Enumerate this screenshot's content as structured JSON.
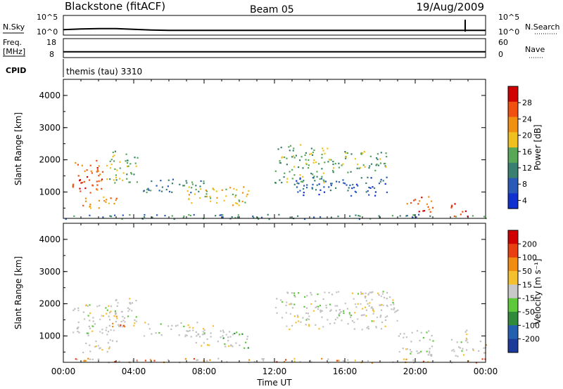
{
  "header": {
    "station": "Blackstone (fitACF)",
    "beam": "Beam 05",
    "date": "19/Aug/2009"
  },
  "top_panels": {
    "nsky_label": "N.Sky",
    "nsearch_label": "N.Search",
    "nsky_ticks": [
      "10^5",
      "10^0"
    ],
    "nsearch_ticks": [
      "10^5",
      "10^0"
    ],
    "freq_label_1": "Freq.",
    "freq_label_2": "[MHz]",
    "freq_ticks": [
      "18",
      "8"
    ],
    "nave_label": "Nave",
    "nave_ticks": [
      "60",
      "0"
    ],
    "cpid_label": "CPID",
    "cpid_text": "themis (tau) 3310"
  },
  "colors": {
    "power_scale": [
      "#1030d0",
      "#2a5ab8",
      "#3a8070",
      "#58a858",
      "#f0c020",
      "#f09010",
      "#f05010",
      "#d00000"
    ],
    "velocity_scale": [
      "#1b3a9a",
      "#2460b0",
      "#2f8a3a",
      "#5cc83a",
      "#c8c8c8",
      "#f5c030",
      "#f08c10",
      "#e84010",
      "#d00000"
    ],
    "ground_scatter": "#c0c0c0"
  },
  "chart_data": [
    {
      "type": "heatmap",
      "panel": "power",
      "ylabel": "Slant Range [km]",
      "xlim_hours_ut": [
        0,
        24
      ],
      "ylim_km": [
        180,
        4500
      ],
      "y_ticks": [
        "4000",
        "3000",
        "2000",
        "1000"
      ],
      "x_ticks": [
        "00:00",
        "04:00",
        "08:00",
        "12:00",
        "16:00",
        "20:00",
        "00:00"
      ],
      "colorbar_label": "Power [dB]",
      "colorbar_ticks": [
        "28",
        "24",
        "20",
        "16",
        "12",
        "8",
        "4"
      ],
      "regions": [
        {
          "t0": 0.5,
          "t1": 2.2,
          "r0": 900,
          "r1": 2000,
          "level": 6
        },
        {
          "t0": 2.2,
          "t1": 4.2,
          "r0": 1300,
          "r1": 2300,
          "level": 3
        },
        {
          "t0": 1.0,
          "t1": 3.0,
          "r0": 500,
          "r1": 900,
          "level": 5
        },
        {
          "t0": 4.5,
          "t1": 8.0,
          "r0": 1000,
          "r1": 1450,
          "level": 2
        },
        {
          "t0": 7.0,
          "t1": 10.5,
          "r0": 600,
          "r1": 1200,
          "level": 4
        },
        {
          "t0": 12.0,
          "t1": 15.0,
          "r0": 1300,
          "r1": 2500,
          "level": 3
        },
        {
          "t0": 13.0,
          "t1": 18.5,
          "r0": 900,
          "r1": 1500,
          "level": 1
        },
        {
          "t0": 15.0,
          "t1": 18.5,
          "r0": 1600,
          "r1": 2300,
          "level": 3
        },
        {
          "t0": 19.5,
          "t1": 21.0,
          "r0": 400,
          "r1": 900,
          "level": 6
        },
        {
          "t0": 22.0,
          "t1": 23.0,
          "r0": 250,
          "r1": 700,
          "level": 7
        },
        {
          "t0": 0.0,
          "t1": 24.0,
          "r0": 180,
          "r1": 320,
          "level": 2
        }
      ]
    },
    {
      "type": "heatmap",
      "panel": "velocity",
      "ylabel": "Slant Range [km]",
      "xlabel": "Time UT",
      "xlim_hours_ut": [
        0,
        24
      ],
      "ylim_km": [
        180,
        4500
      ],
      "y_ticks": [
        "4000",
        "3000",
        "2000",
        "1000"
      ],
      "x_ticks": [
        "00:00",
        "04:00",
        "08:00",
        "12:00",
        "16:00",
        "20:00",
        "00:00"
      ],
      "colorbar_label": "Velocity [m s⁻¹]",
      "colorbar_ticks": [
        "200",
        "100",
        "50",
        "15",
        "-15",
        "-50",
        "-100",
        "-200"
      ],
      "regions": [
        {
          "t0": 0.5,
          "t1": 3.0,
          "r0": 1000,
          "r1": 2000,
          "level": 4
        },
        {
          "t0": 2.5,
          "t1": 4.2,
          "r0": 1300,
          "r1": 2200,
          "level": 4
        },
        {
          "t0": 1.0,
          "t1": 3.0,
          "r0": 500,
          "r1": 900,
          "level": 5
        },
        {
          "t0": 2.5,
          "t1": 3.5,
          "r0": 1300,
          "r1": 1800,
          "level": 6
        },
        {
          "t0": 4.5,
          "t1": 8.5,
          "r0": 1000,
          "r1": 1450,
          "level": 4
        },
        {
          "t0": 7.5,
          "t1": 9.5,
          "r0": 700,
          "r1": 1200,
          "level": 4
        },
        {
          "t0": 9.0,
          "t1": 10.5,
          "r0": 600,
          "r1": 1200,
          "level": 3
        },
        {
          "t0": 12.0,
          "t1": 19.0,
          "r0": 1200,
          "r1": 2400,
          "level": 4
        },
        {
          "t0": 19.0,
          "t1": 21.0,
          "r0": 400,
          "r1": 1200,
          "level": 4
        },
        {
          "t0": 22.0,
          "t1": 23.0,
          "r0": 250,
          "r1": 1200,
          "level": 4
        },
        {
          "t0": 23.2,
          "t1": 24.0,
          "r0": 400,
          "r1": 900,
          "level": 6
        },
        {
          "t0": 0.0,
          "t1": 24.0,
          "r0": 180,
          "r1": 320,
          "level": 6
        }
      ]
    }
  ],
  "nsky_series": [
    1.2,
    1.4,
    1.5,
    1.5,
    1.3,
    1.1,
    1.0,
    1.0,
    1.0,
    1.0,
    1.0,
    1.0,
    1.0,
    1.0,
    1.0,
    1.0,
    1.0,
    1.0,
    1.0,
    1.0,
    1.0,
    1.0,
    1.0,
    1.0,
    1.0
  ],
  "freq_series": [
    10.7,
    10.7,
    10.7,
    10.7,
    10.7,
    10.7,
    10.7,
    10.7,
    10.7,
    10.7,
    10.7,
    10.7,
    10.7,
    10.7,
    10.7,
    10.7,
    10.7,
    10.7,
    10.7,
    10.7,
    10.7,
    10.7,
    10.7,
    10.7,
    10.7
  ]
}
